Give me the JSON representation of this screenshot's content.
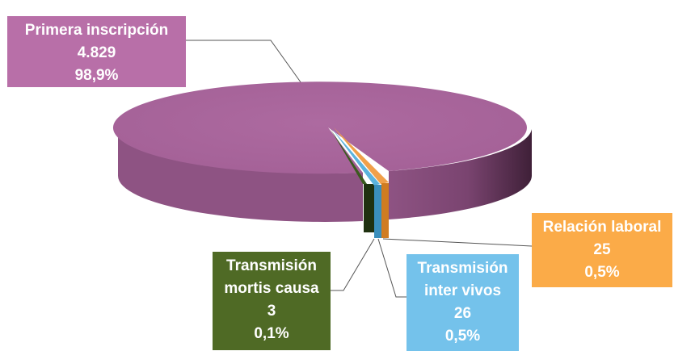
{
  "chart_data": {
    "type": "pie",
    "title": "",
    "style": "3d-exploded",
    "slices": [
      {
        "name": "Primera inscripción",
        "value": 4829,
        "value_label": "4.829",
        "percent_label": "98,9%",
        "color": "#a7659a",
        "label_color": "#b86fa8"
      },
      {
        "name": "Relación laboral",
        "value": 25,
        "value_label": "25",
        "percent_label": "0,5%",
        "color": "#e8912d",
        "label_color": "#fbab48"
      },
      {
        "name": "Transmisión inter vivos",
        "value": 26,
        "value_label": "26",
        "percent_label": "0,5%",
        "color": "#4aa3cf",
        "label_color": "#74c2eb"
      },
      {
        "name": "Transmisión mortis causa",
        "value": 3,
        "value_label": "3",
        "percent_label": "0,1%",
        "color": "#2e4718",
        "label_color": "#4f6a25"
      }
    ]
  },
  "labels": {
    "primera": {
      "line1": "Primera inscripción",
      "value": "4.829",
      "percent": "98,9%"
    },
    "laboral": {
      "line1": "Relación laboral",
      "value": "25",
      "percent": "0,5%"
    },
    "intervivos": {
      "line1": "Transmisión",
      "line2": "inter vivos",
      "value": "26",
      "percent": "0,5%"
    },
    "mortis": {
      "line1": "Transmisión",
      "line2": "mortis causa",
      "value": "3",
      "percent": "0,1%"
    }
  }
}
